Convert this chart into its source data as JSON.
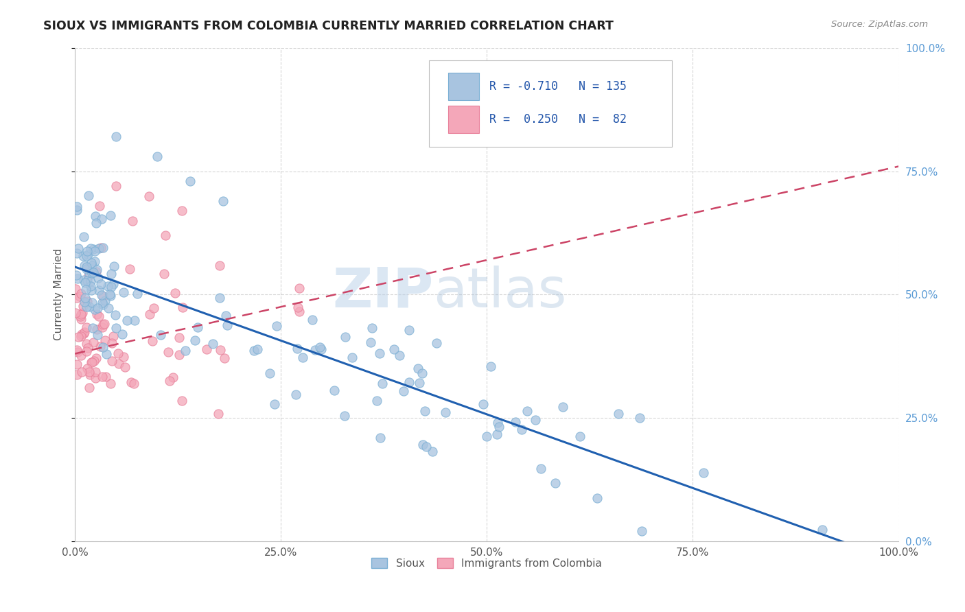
{
  "title": "SIOUX VS IMMIGRANTS FROM COLOMBIA CURRENTLY MARRIED CORRELATION CHART",
  "source": "Source: ZipAtlas.com",
  "ylabel": "Currently Married",
  "R1": -0.71,
  "N1": 135,
  "R2": 0.25,
  "N2": 82,
  "sioux_color": "#a8c4e0",
  "sioux_edge_color": "#7aafd4",
  "colombia_color": "#f4a7b9",
  "colombia_edge_color": "#e8809a",
  "sioux_line_color": "#2060b0",
  "colombia_line_color": "#cc4466",
  "background_color": "#ffffff",
  "grid_color": "#cccccc",
  "watermark_zip": "ZIP",
  "watermark_atlas": "atlas",
  "title_color": "#222222",
  "axis_label_color": "#555555",
  "right_tick_color": "#5b9bd5",
  "legend_label1": "Sioux",
  "legend_label2": "Immigrants from Colombia"
}
